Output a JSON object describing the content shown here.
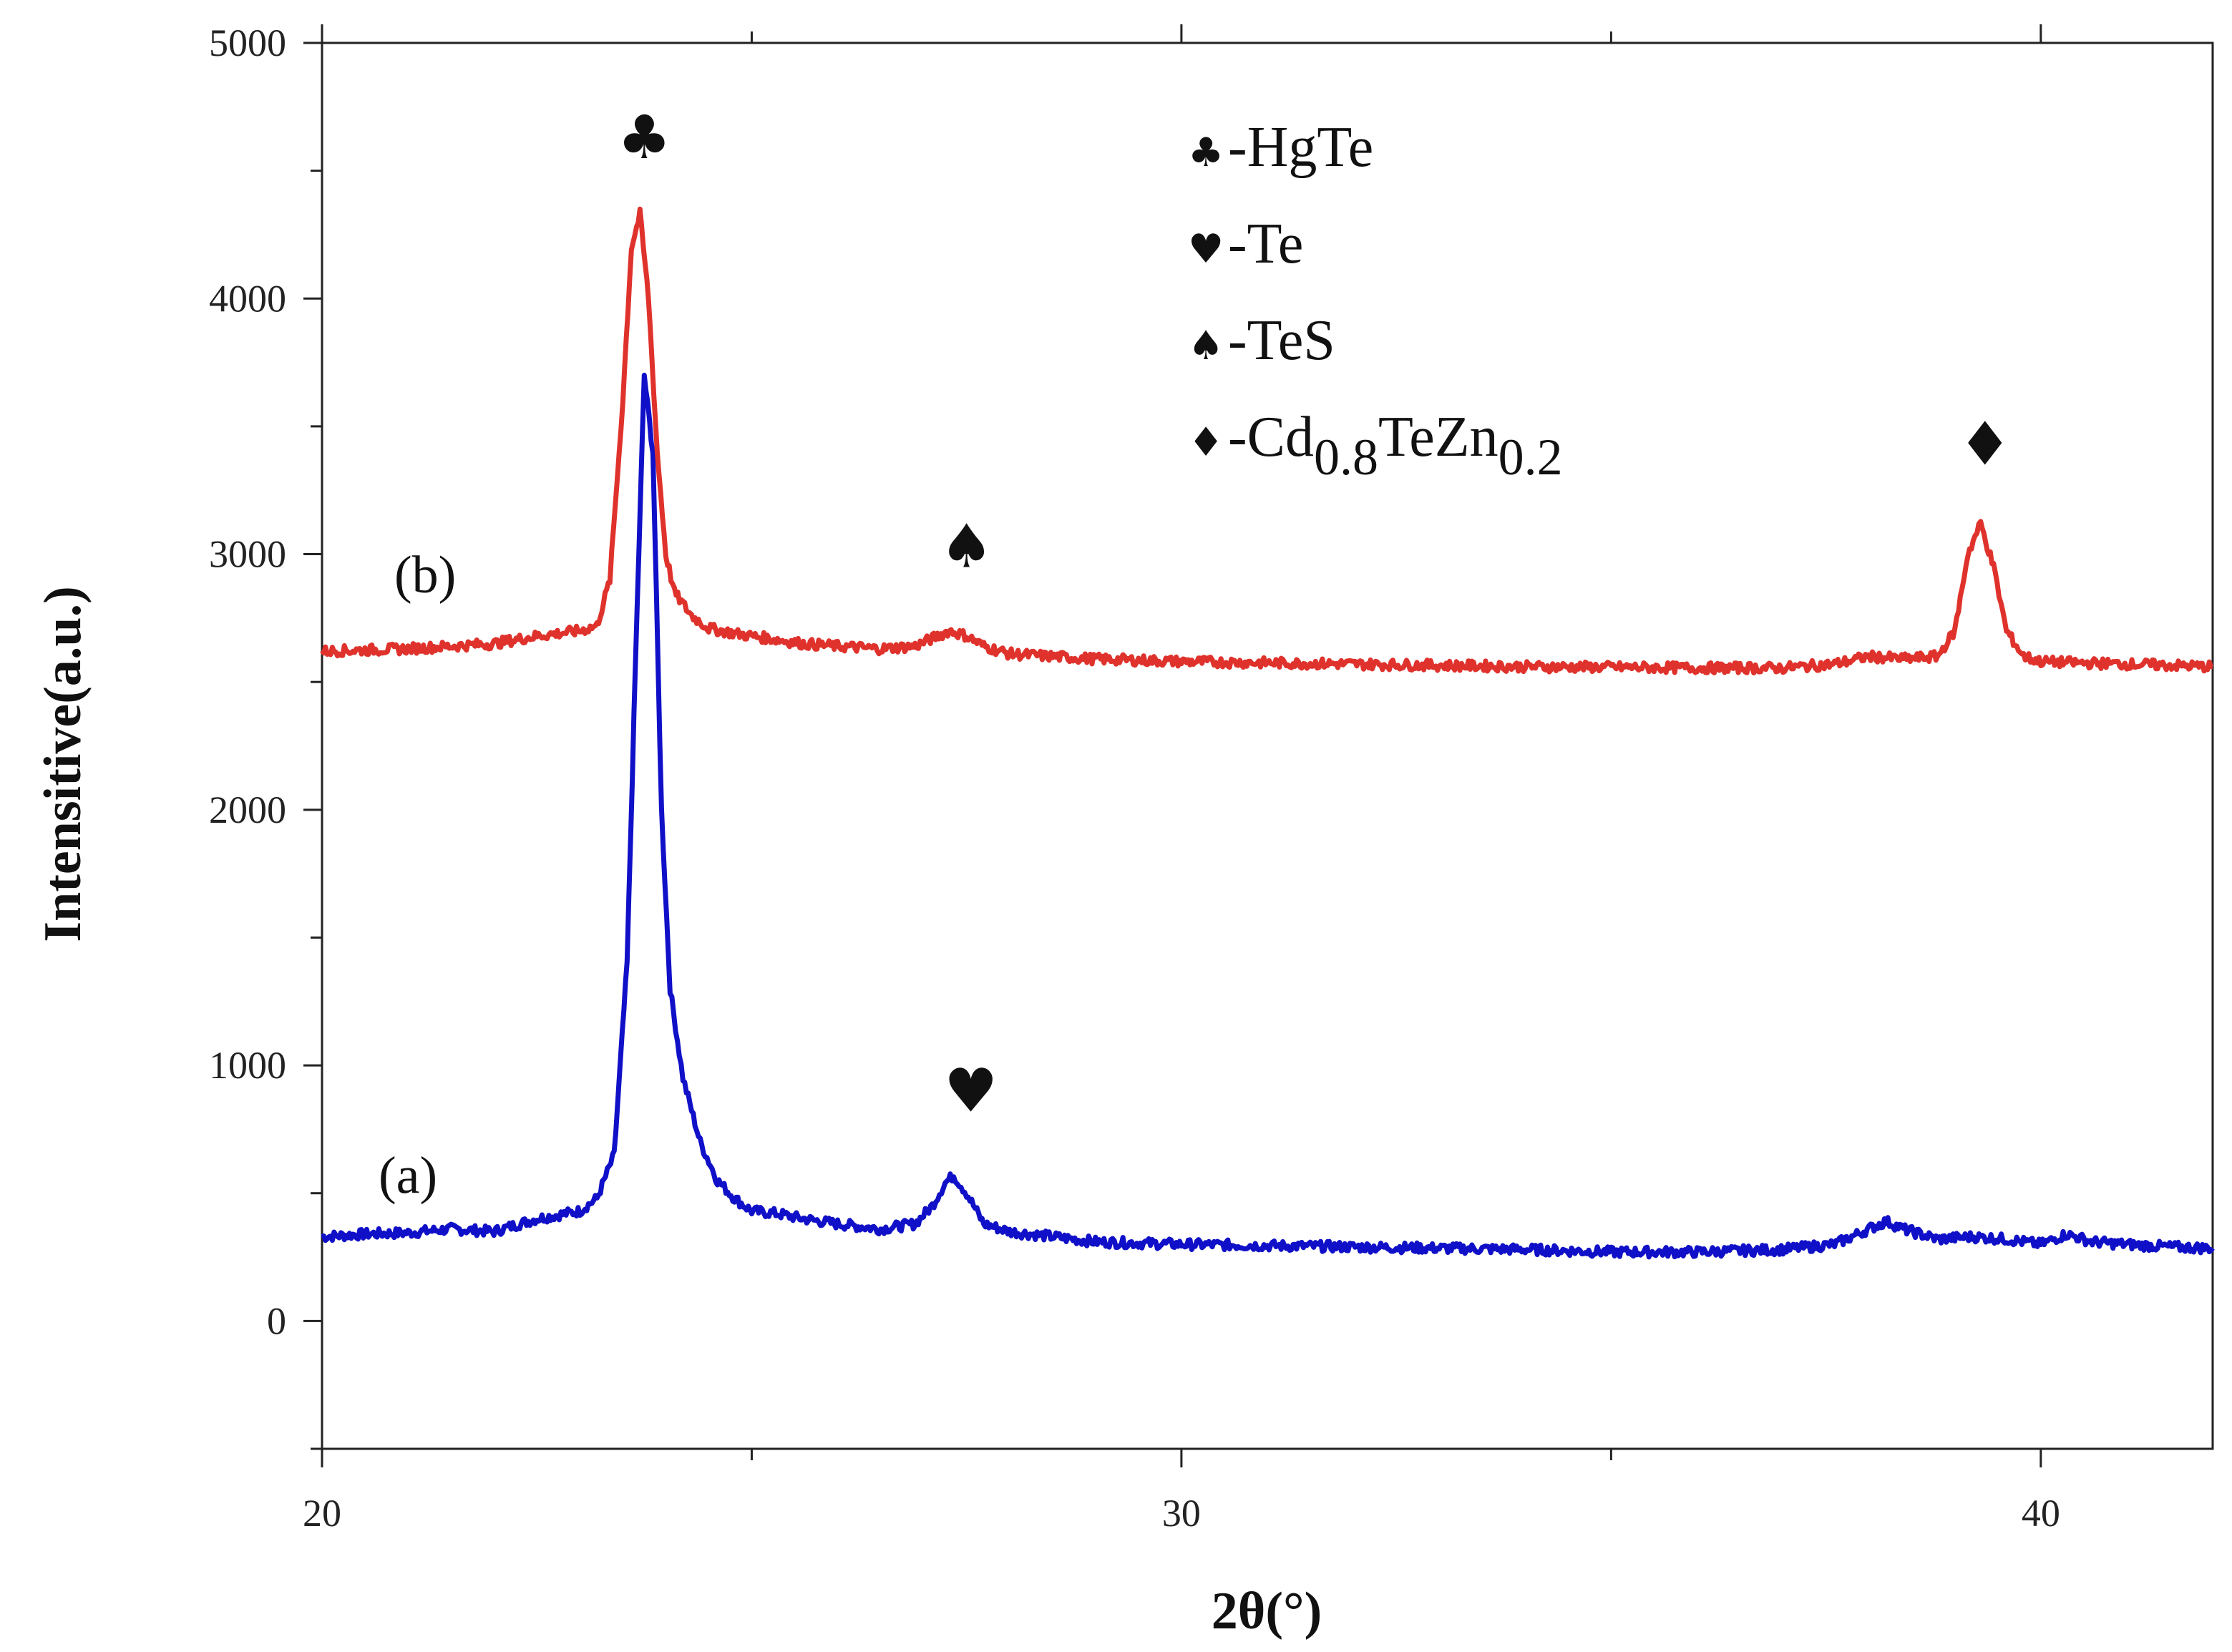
{
  "chart_data": {
    "type": "line",
    "title": "",
    "xlabel": "2θ(°)",
    "ylabel": "Intensitive(a.u.)",
    "xlim": [
      20,
      42
    ],
    "ylim": [
      -500,
      5000
    ],
    "x_major_ticks": [
      20,
      30,
      40
    ],
    "x_tick_labels": [
      "20",
      "30",
      "40"
    ],
    "y_major_ticks": [
      0,
      1000,
      2000,
      3000,
      4000,
      5000
    ],
    "y_tick_labels": [
      "0",
      "1000",
      "2000",
      "3000",
      "4000",
      "5000"
    ],
    "grid": false,
    "legend_position": "top-center",
    "legend": [
      {
        "symbol": "♣",
        "name": "HgTe",
        "text": "-HgTe"
      },
      {
        "symbol": "♥",
        "name": "Te",
        "text": "-Te"
      },
      {
        "symbol": "♠",
        "name": "TeS",
        "text": "-TeS"
      },
      {
        "symbol": "♦",
        "name": "Cd0.8TeZn0.2",
        "text_parts": [
          "-Cd",
          "0.8",
          "TeZn",
          "0.2"
        ]
      }
    ],
    "series": [
      {
        "name": "(a)",
        "label": "(a)",
        "color": "#1010c8",
        "x": [
          20.0,
          20.5,
          21.0,
          21.5,
          22.0,
          22.5,
          23.0,
          23.2,
          23.4,
          23.55,
          23.65,
          23.75,
          23.85,
          23.95,
          24.05,
          24.2,
          24.4,
          24.6,
          24.8,
          25.0,
          25.3,
          25.6,
          26.0,
          26.5,
          26.9,
          27.1,
          27.25,
          27.35,
          27.5,
          27.7,
          28.0,
          28.5,
          29.0,
          30.0,
          31.0,
          32.0,
          33.0,
          34.0,
          35.0,
          36.0,
          37.0,
          37.6,
          38.0,
          38.2,
          38.4,
          38.8,
          39.2,
          39.6,
          40.0,
          40.3,
          40.6,
          41.0,
          41.5,
          42.0
        ],
        "y": [
          330,
          340,
          345,
          360,
          350,
          400,
          430,
          480,
          650,
          1400,
          2600,
          3700,
          3400,
          2000,
          1300,
          950,
          700,
          550,
          480,
          430,
          420,
          400,
          380,
          360,
          380,
          450,
          540,
          570,
          500,
          380,
          350,
          330,
          310,
          300,
          295,
          290,
          285,
          280,
          270,
          270,
          280,
          300,
          360,
          390,
          360,
          320,
          330,
          320,
          300,
          340,
          310,
          300,
          290,
          285
        ]
      },
      {
        "name": "(b)",
        "label": "(b)",
        "color": "#e0322c",
        "x": [
          20.0,
          20.5,
          21.0,
          21.5,
          22.0,
          22.5,
          23.0,
          23.2,
          23.35,
          23.5,
          23.6,
          23.7,
          23.8,
          23.9,
          24.0,
          24.1,
          24.3,
          24.5,
          24.8,
          25.2,
          25.6,
          26.0,
          26.5,
          26.9,
          27.1,
          27.3,
          27.5,
          27.7,
          28.0,
          28.5,
          29.0,
          30.0,
          31.0,
          32.0,
          33.0,
          34.0,
          35.0,
          36.0,
          37.0,
          37.6,
          38.0,
          38.4,
          38.8,
          39.0,
          39.15,
          39.3,
          39.45,
          39.6,
          39.8,
          40.0,
          40.4,
          41.0,
          41.5,
          42.0
        ],
        "y": [
          2620,
          2625,
          2630,
          2640,
          2650,
          2680,
          2700,
          2720,
          2900,
          3600,
          4200,
          4330,
          4000,
          3400,
          3000,
          2850,
          2760,
          2710,
          2690,
          2670,
          2650,
          2640,
          2630,
          2640,
          2670,
          2700,
          2680,
          2640,
          2610,
          2600,
          2590,
          2580,
          2575,
          2570,
          2565,
          2560,
          2558,
          2555,
          2555,
          2570,
          2600,
          2590,
          2600,
          2700,
          3000,
          3120,
          2950,
          2700,
          2600,
          2580,
          2575,
          2570,
          2565,
          2560
        ]
      }
    ],
    "peak_markers": [
      {
        "symbol": "♣",
        "phase": "HgTe",
        "x": 23.75,
        "y": 4550
      },
      {
        "symbol": "♠",
        "phase": "TeS",
        "x": 27.5,
        "y": 2950
      },
      {
        "symbol": "♥",
        "phase": "Te",
        "x": 27.55,
        "y": 820
      },
      {
        "symbol": "♦",
        "phase": "Cd0.8TeZn0.2",
        "x": 39.35,
        "y": 3350
      }
    ],
    "series_label_positions": [
      {
        "label": "(a)",
        "x": 21.0,
        "y": 500
      },
      {
        "label": "(b)",
        "x": 21.2,
        "y": 2850
      }
    ]
  }
}
